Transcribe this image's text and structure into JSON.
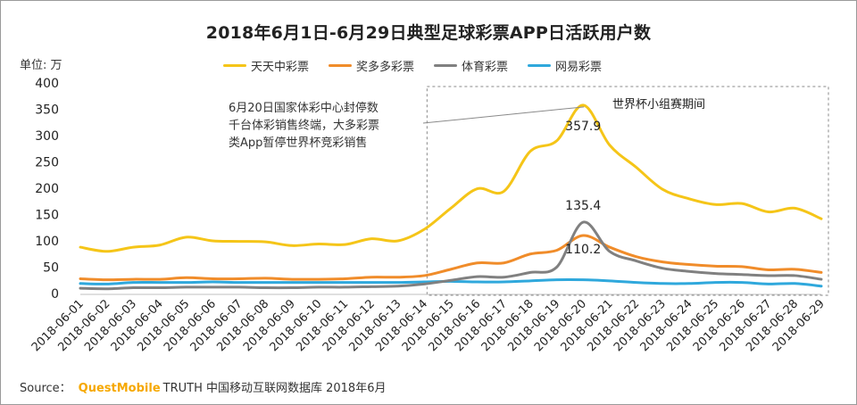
{
  "chart_data": {
    "type": "line",
    "title": "2018年6月1日-6月29日典型足球彩票APP日活跃用户数",
    "unit_label": "单位: 万",
    "categories": [
      "2018-06-01",
      "2018-06-02",
      "2018-06-03",
      "2018-06-04",
      "2018-06-05",
      "2018-06-06",
      "2018-06-07",
      "2018-06-08",
      "2018-06-09",
      "2018-06-10",
      "2018-06-11",
      "2018-06-12",
      "2018-06-13",
      "2018-06-14",
      "2018-06-15",
      "2018-06-16",
      "2018-06-17",
      "2018-06-18",
      "2018-06-19",
      "2018-06-20",
      "2018-06-21",
      "2018-06-22",
      "2018-06-23",
      "2018-06-24",
      "2018-06-25",
      "2018-06-26",
      "2018-06-27",
      "2018-06-28",
      "2018-06-29"
    ],
    "ylim": [
      0,
      400
    ],
    "yticks": [
      0,
      50,
      100,
      150,
      200,
      250,
      300,
      350,
      400
    ],
    "grid": false,
    "legend_position": "top",
    "series": [
      {
        "name": "天天中彩票",
        "color": "#f5c518",
        "values": [
          88,
          80,
          88,
          92,
          107,
          100,
          99,
          98,
          91,
          94,
          93,
          104,
          100,
          122,
          162,
          199,
          194,
          270,
          290,
          357.9,
          282,
          240,
          198,
          180,
          169,
          171,
          155,
          162,
          142
        ]
      },
      {
        "name": "奖多多彩票",
        "color": "#f08c2a",
        "values": [
          28,
          26,
          27,
          27,
          30,
          28,
          28,
          29,
          27,
          27,
          28,
          31,
          31,
          34,
          46,
          58,
          58,
          75,
          82,
          110.2,
          88,
          70,
          60,
          55,
          52,
          51,
          45,
          46,
          40
        ]
      },
      {
        "name": "体育彩票",
        "color": "#808080",
        "values": [
          10,
          9,
          11,
          11,
          12,
          12,
          12,
          11,
          11,
          12,
          12,
          13,
          14,
          18,
          25,
          32,
          31,
          40,
          50,
          135.4,
          80,
          62,
          48,
          42,
          38,
          36,
          34,
          34,
          27
        ]
      },
      {
        "name": "网易彩票",
        "color": "#2fa8dc",
        "values": [
          19,
          18,
          21,
          21,
          21,
          22,
          21,
          21,
          21,
          21,
          21,
          21,
          21,
          22,
          23,
          22,
          22,
          24,
          26,
          26,
          24,
          21,
          19,
          19,
          21,
          21,
          18,
          19,
          14
        ]
      }
    ],
    "data_labels": [
      {
        "series": "天天中彩票",
        "category": "2018-06-20",
        "text": "357.9"
      },
      {
        "series": "体育彩票",
        "category": "2018-06-20",
        "text": "135.4"
      },
      {
        "series": "奖多多彩票",
        "category": "2018-06-20",
        "text": "110.2"
      }
    ],
    "annotations": {
      "note_lines": [
        "6月20日国家体彩中心封停数",
        "千台体彩销售终端，大多彩票",
        "类App暂停世界杯竞彩销售"
      ],
      "note_target_category": "2018-06-20",
      "region_label": "世界杯小组赛期间",
      "region_start_category": "2018-06-14",
      "region_end_category": "2018-06-29"
    }
  },
  "source": {
    "prefix": "Source：",
    "brand": "QuestMobile",
    "rest": "TRUTH 中国移动互联网数据库 2018年6月"
  }
}
